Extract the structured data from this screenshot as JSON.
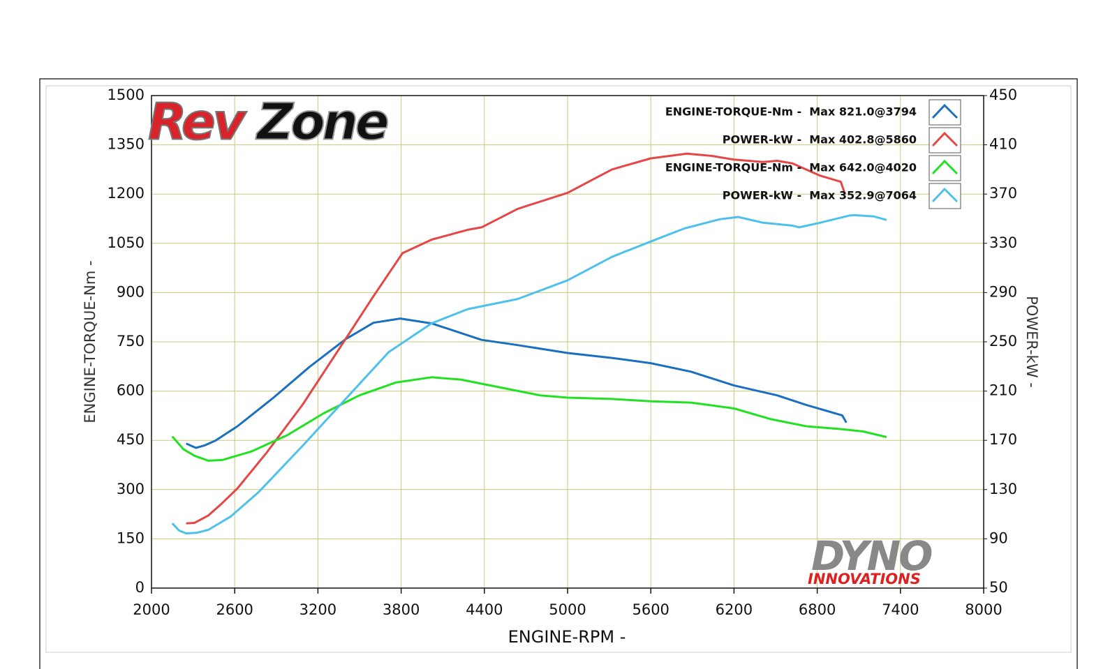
{
  "chart_data": {
    "type": "line",
    "logos": {
      "rev": "Rev",
      "zone": "Zone",
      "dyno": "DYNO",
      "innovations": "INNOVATIONS"
    },
    "x_label": "ENGINE-RPM -",
    "y_label": "ENGINE-TORQUE-Nm -",
    "y2_label": "POWER-kW -",
    "xlim": [
      2000,
      8000
    ],
    "xticks": [
      2000,
      2600,
      3200,
      3800,
      4400,
      5000,
      5600,
      6200,
      6800,
      7400,
      8000
    ],
    "ylim": [
      0,
      1500
    ],
    "yticks": [
      0,
      150,
      300,
      450,
      600,
      750,
      900,
      1050,
      1200,
      1350,
      1500
    ],
    "y2lim": [
      50,
      450
    ],
    "y2ticks": [
      50,
      90,
      130,
      170,
      210,
      250,
      290,
      330,
      370,
      410,
      450
    ],
    "grid": true,
    "legend": "top-right",
    "series": [
      {
        "name": "ENGINE-TORQUE-Nm -  Max 821.0@3794",
        "color": "#1a6fbf",
        "axis": "y",
        "x": [
          2250,
          2320,
          2380,
          2460,
          2620,
          2880,
          3140,
          3400,
          3600,
          3794,
          4020,
          4230,
          4380,
          4640,
          5000,
          5320,
          5600,
          5890,
          6200,
          6510,
          6720,
          6980,
          7010
        ],
        "values": [
          440,
          427,
          434,
          449,
          493,
          580,
          674,
          758,
          808,
          821,
          806,
          777,
          756,
          740,
          716,
          701,
          685,
          659,
          617,
          587,
          558,
          526,
          504
        ]
      },
      {
        "name": "POWER-kW -  Max 402.8@5860",
        "color": "#e54646",
        "axis": "y2",
        "x": [
          2250,
          2310,
          2410,
          2510,
          2620,
          2830,
          3090,
          3340,
          3600,
          3810,
          4020,
          4280,
          4380,
          4640,
          5000,
          5320,
          5600,
          5860,
          6040,
          6200,
          6410,
          6510,
          6620,
          6820,
          6970,
          7000
        ],
        "values": [
          102.6,
          103,
          109,
          119,
          131,
          160,
          199,
          242,
          287,
          322,
          333,
          341,
          343,
          358,
          371,
          390,
          399,
          402.8,
          401,
          398,
          396,
          397,
          395,
          385,
          380,
          370
        ]
      },
      {
        "name": "ENGINE-TORQUE-Nm -  Max 642.0@4020",
        "color": "#22e022",
        "axis": "y",
        "x": [
          2150,
          2230,
          2310,
          2410,
          2510,
          2720,
          2980,
          3240,
          3500,
          3760,
          4020,
          4230,
          4540,
          4800,
          5000,
          5320,
          5600,
          5890,
          6200,
          6460,
          6720,
          6980,
          7130,
          7300
        ],
        "values": [
          462,
          423,
          403,
          388,
          390,
          416,
          466,
          532,
          587,
          626,
          642,
          635,
          609,
          587,
          580,
          576,
          569,
          565,
          547,
          515,
          493,
          484,
          477,
          460
        ]
      },
      {
        "name": "POWER-kW -  Max 352.9@7064",
        "color": "#4dc0ec",
        "axis": "y2",
        "x": [
          2150,
          2200,
          2250,
          2330,
          2410,
          2570,
          2770,
          3090,
          3400,
          3710,
          4020,
          4280,
          4640,
          5000,
          5320,
          5600,
          5840,
          6100,
          6230,
          6410,
          6620,
          6670,
          6820,
          7030,
          7064,
          7210,
          7300
        ],
        "values": [
          102.6,
          96.7,
          94.4,
          95,
          97.3,
          108,
          127.7,
          165.6,
          203.6,
          241.6,
          265,
          276.6,
          284.8,
          300,
          319,
          331.5,
          342,
          349.6,
          351.4,
          346.7,
          344.4,
          343,
          346.7,
          352.5,
          352.9,
          351.8,
          349
        ]
      }
    ]
  }
}
